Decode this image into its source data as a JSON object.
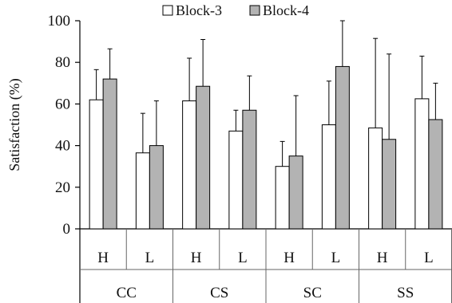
{
  "chart_data": {
    "type": "bar",
    "title": "",
    "xlabel": "",
    "ylabel": "Satisfaction (%)",
    "ylim": [
      0,
      100
    ],
    "yticks": [
      0,
      20,
      40,
      60,
      80,
      100
    ],
    "legend_placement": "top-center",
    "groups": [
      "CC",
      "CS",
      "SC",
      "SS"
    ],
    "subcategories": [
      "H",
      "L",
      "H",
      "L",
      "H",
      "L",
      "H",
      "L"
    ],
    "series": [
      {
        "name": "Block-3",
        "color": "#ffffff",
        "values": [
          62,
          36.5,
          61.5,
          47,
          30,
          50,
          48.5,
          62.5
        ],
        "errors": [
          14.5,
          19,
          20.5,
          10,
          12,
          21,
          43,
          20.5
        ]
      },
      {
        "name": "Block-4",
        "color": "#b3b3b3",
        "values": [
          72,
          40,
          68.5,
          57,
          35,
          78,
          43,
          52.5
        ],
        "errors": [
          14.5,
          21.5,
          22.5,
          16.5,
          29,
          22,
          41,
          17.5
        ]
      }
    ]
  }
}
